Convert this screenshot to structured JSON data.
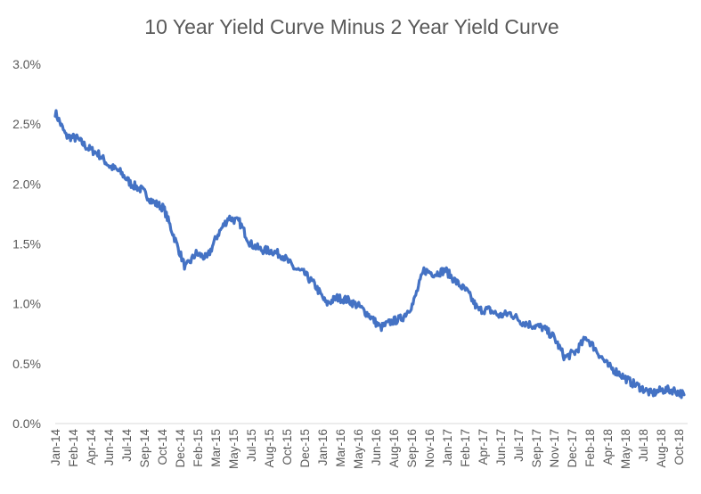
{
  "chart_data": {
    "type": "line",
    "title": "10 Year Yield Curve Minus 2 Year Yield Curve",
    "xlabel": "",
    "ylabel": "",
    "ylim": [
      0.0,
      3.0
    ],
    "y_ticks": [
      0.0,
      0.5,
      1.0,
      1.5,
      2.0,
      2.5,
      3.0
    ],
    "y_tick_labels": [
      "0.0%",
      "0.5%",
      "1.0%",
      "1.5%",
      "2.0%",
      "2.5%",
      "3.0%"
    ],
    "x_tick_labels": [
      "Jan-14",
      "Feb-14",
      "Apr-14",
      "Jun-14",
      "Jul-14",
      "Sep-14",
      "Oct-14",
      "Dec-14",
      "Feb-15",
      "Mar-15",
      "May-15",
      "Jul-15",
      "Aug-15",
      "Oct-15",
      "Dec-15",
      "Jan-16",
      "Mar-16",
      "May-16",
      "Jun-16",
      "Aug-16",
      "Sep-16",
      "Nov-16",
      "Jan-17",
      "Feb-17",
      "Apr-17",
      "Jun-17",
      "Jul-17",
      "Sep-17",
      "Nov-17",
      "Dec-17",
      "Feb-18",
      "Apr-18",
      "May-18",
      "Jul-18",
      "Aug-18",
      "Oct-18"
    ],
    "grid": false,
    "legend": "none",
    "line_color": "#4472C4",
    "series": [
      {
        "x": [
          "2014-01",
          "2014-02",
          "2014-03",
          "2014-04",
          "2014-05",
          "2014-06",
          "2014-07",
          "2014-08",
          "2014-09",
          "2014-10",
          "2014-11",
          "2014-12",
          "2015-01",
          "2015-02",
          "2015-03",
          "2015-04",
          "2015-05",
          "2015-06",
          "2015-07",
          "2015-08",
          "2015-09",
          "2015-10",
          "2015-11",
          "2015-12",
          "2016-01",
          "2016-02",
          "2016-03",
          "2016-04",
          "2016-05",
          "2016-06",
          "2016-07",
          "2016-08",
          "2016-09",
          "2016-10",
          "2016-11",
          "2016-12",
          "2017-01",
          "2017-02",
          "2017-03",
          "2017-04",
          "2017-05",
          "2017-06",
          "2017-07",
          "2017-08",
          "2017-09",
          "2017-10",
          "2017-11",
          "2017-12",
          "2018-01",
          "2018-02",
          "2018-03",
          "2018-04",
          "2018-05",
          "2018-06",
          "2018-07",
          "2018-08",
          "2018-09",
          "2018-10",
          "2018-11"
        ],
        "values": [
          2.6,
          2.4,
          2.38,
          2.3,
          2.25,
          2.15,
          2.1,
          2.0,
          1.95,
          1.85,
          1.8,
          1.55,
          1.3,
          1.42,
          1.38,
          1.58,
          1.72,
          1.68,
          1.5,
          1.45,
          1.44,
          1.4,
          1.3,
          1.25,
          1.15,
          1.0,
          1.05,
          1.03,
          0.98,
          0.9,
          0.8,
          0.85,
          0.88,
          1.0,
          1.28,
          1.25,
          1.28,
          1.18,
          1.1,
          0.95,
          0.95,
          0.9,
          0.92,
          0.85,
          0.82,
          0.8,
          0.72,
          0.55,
          0.6,
          0.72,
          0.6,
          0.48,
          0.42,
          0.35,
          0.3,
          0.25,
          0.28,
          0.28,
          0.24
        ]
      }
    ]
  }
}
